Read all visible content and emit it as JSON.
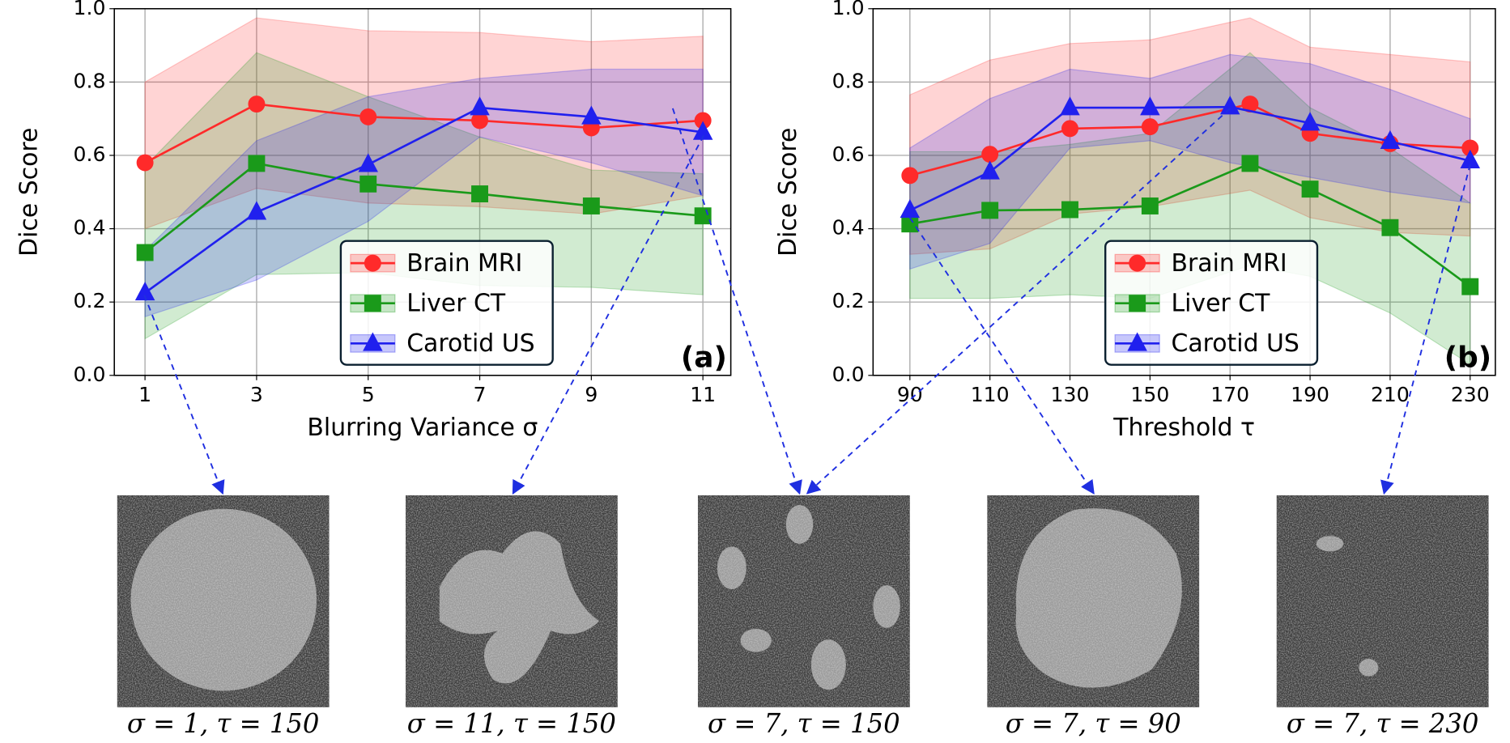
{
  "chart_data": [
    {
      "type": "line",
      "panel_label": "(a)",
      "xlabel": "Blurring Variance σ",
      "ylabel": "Dice Score",
      "x": [
        1,
        3,
        5,
        7,
        9,
        11
      ],
      "xlim": [
        0.45,
        11.5
      ],
      "xticks": [
        1,
        3,
        5,
        7,
        9,
        11
      ],
      "ylim": [
        0,
        1
      ],
      "yticks": [
        {
          "value": 0,
          "label": "0.0"
        },
        0.2,
        0.4,
        0.6,
        0.8,
        {
          "value": 1,
          "label": "1.0"
        }
      ],
      "grid": true,
      "legend": "lower right",
      "series": [
        {
          "name": "Brain MRI",
          "color": "#ff2a2a",
          "marker": "circle",
          "values": [
            0.58,
            0.74,
            0.705,
            0.695,
            0.675,
            0.695
          ],
          "upper": [
            0.8,
            0.975,
            0.94,
            0.935,
            0.91,
            0.925
          ],
          "lower": [
            0.4,
            0.51,
            0.47,
            0.46,
            0.44,
            0.49
          ]
        },
        {
          "name": "Liver CT",
          "color": "#1a9a1a",
          "marker": "square",
          "values": [
            0.335,
            0.578,
            0.522,
            0.495,
            0.462,
            0.435
          ],
          "upper": [
            0.57,
            0.88,
            0.76,
            0.65,
            0.56,
            0.55
          ],
          "lower": [
            0.1,
            0.275,
            0.28,
            0.245,
            0.24,
            0.22
          ]
        },
        {
          "name": "Carotid US",
          "color": "#2020ee",
          "marker": "triangle",
          "values": [
            0.225,
            0.445,
            0.575,
            0.73,
            0.705,
            0.663
          ],
          "upper": [
            0.34,
            0.64,
            0.76,
            0.81,
            0.835,
            0.835
          ],
          "lower": [
            0.16,
            0.26,
            0.42,
            0.65,
            0.58,
            0.49
          ]
        }
      ]
    },
    {
      "type": "line",
      "panel_label": "(b)",
      "xlabel": "Threshold τ",
      "ylabel": "Dice Score",
      "xlim": [
        80.8,
        236.3
      ],
      "xticks": [
        90,
        110,
        130,
        150,
        170,
        190,
        210,
        230
      ],
      "ylim": [
        0,
        1
      ],
      "yticks": [
        {
          "value": 0,
          "label": "0.0"
        },
        0.2,
        0.4,
        0.6,
        0.8,
        {
          "value": 1,
          "label": "1.0"
        }
      ],
      "grid": true,
      "legend": "lower right",
      "series": [
        {
          "name": "Brain MRI",
          "color": "#ff2a2a",
          "marker": "circle",
          "x": [
            90,
            110,
            130,
            150,
            175,
            190,
            210,
            230
          ],
          "values": [
            0.545,
            0.603,
            0.673,
            0.678,
            0.74,
            0.66,
            0.632,
            0.62
          ],
          "upper": [
            0.765,
            0.86,
            0.905,
            0.915,
            0.975,
            0.895,
            0.875,
            0.855
          ],
          "lower": [
            0.33,
            0.345,
            0.44,
            0.46,
            0.505,
            0.43,
            0.39,
            0.38
          ]
        },
        {
          "name": "Liver CT",
          "color": "#1a9a1a",
          "marker": "square",
          "x": [
            90,
            110,
            130,
            150,
            175,
            190,
            210,
            230
          ],
          "values": [
            0.413,
            0.45,
            0.452,
            0.462,
            0.578,
            0.508,
            0.403,
            0.242
          ],
          "upper": [
            0.61,
            0.61,
            0.63,
            0.66,
            0.88,
            0.73,
            0.62,
            0.47
          ],
          "lower": [
            0.21,
            0.21,
            0.22,
            0.21,
            0.3,
            0.27,
            0.17,
            0.03
          ]
        },
        {
          "name": "Carotid US",
          "color": "#2020ee",
          "marker": "triangle",
          "x": [
            90,
            110,
            130,
            150,
            170,
            190,
            210,
            230
          ],
          "values": [
            0.45,
            0.555,
            0.73,
            0.73,
            0.732,
            0.688,
            0.638,
            0.585
          ],
          "upper": [
            0.62,
            0.755,
            0.835,
            0.81,
            0.875,
            0.85,
            0.78,
            0.7
          ],
          "lower": [
            0.29,
            0.36,
            0.62,
            0.64,
            0.58,
            0.54,
            0.5,
            0.47
          ]
        }
      ]
    }
  ],
  "images": [
    {
      "caption": "σ = 1, τ = 150"
    },
    {
      "caption": "σ = 11, τ = 150"
    },
    {
      "caption": "σ = 7, τ = 150"
    },
    {
      "caption": "σ = 7, τ = 90"
    },
    {
      "caption": "σ = 7, τ = 230"
    }
  ]
}
